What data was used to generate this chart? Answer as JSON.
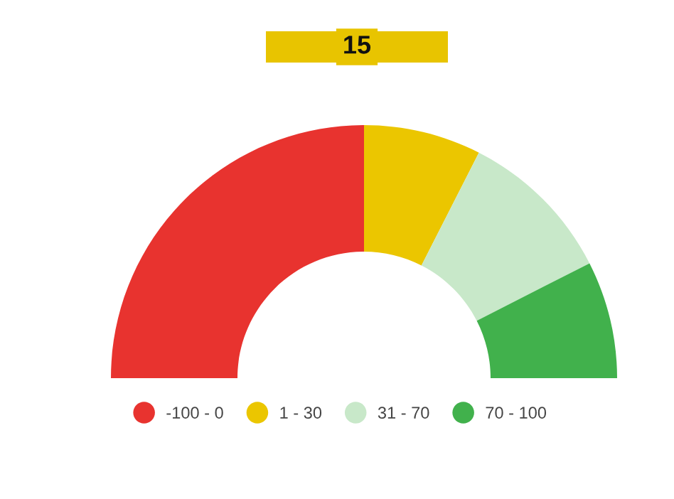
{
  "chart_data": {
    "type": "donut",
    "title": "15",
    "categories": [
      "-100 - 0",
      "1 - 30",
      "31 - 70",
      "70 - 100"
    ],
    "values": [
      50,
      15,
      20,
      15
    ],
    "colors": [
      "#e8332f",
      "#ebc600",
      "#c8e8c9",
      "#41b14c"
    ],
    "legend": "bottom"
  }
}
